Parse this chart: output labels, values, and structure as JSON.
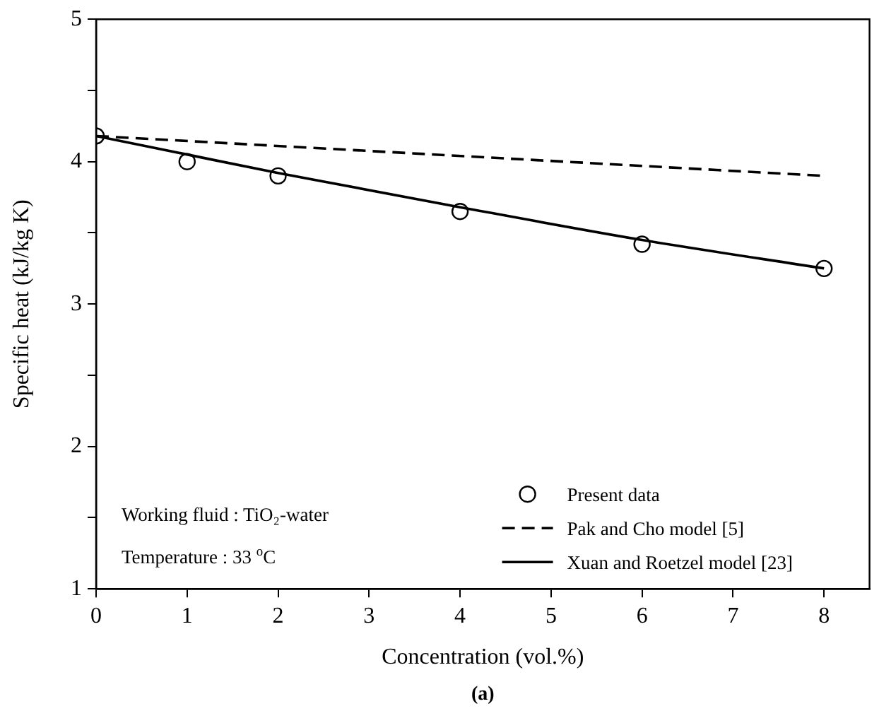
{
  "chart_data": {
    "type": "line",
    "xlabel": "Concentration (vol.%)",
    "ylabel": "Specific heat (kJ/kg K)",
    "xlim": [
      0,
      8.5
    ],
    "xticks": [
      0,
      1,
      2,
      3,
      4,
      5,
      6,
      7,
      8
    ],
    "ylim": [
      1,
      5
    ],
    "yticks": [
      1,
      {
        "value": 1.5,
        "label": null
      },
      2,
      {
        "value": 2.5,
        "label": null
      },
      3,
      {
        "value": 3.5,
        "label": null
      },
      4,
      {
        "value": 4.5,
        "label": null
      },
      5
    ],
    "grid": false,
    "legend": "bottom right",
    "series": [
      {
        "name": "Present data",
        "type": "scatter",
        "color": "#000000",
        "marker": "circle",
        "x": [
          0,
          1,
          2,
          4,
          6,
          8
        ],
        "values": [
          4.18,
          4.0,
          3.9,
          3.65,
          3.42,
          3.25
        ]
      },
      {
        "name": "Pak and Cho model [5]",
        "type": "line",
        "color": "#000000",
        "marker": "none",
        "line_style": "dashed",
        "x": [
          0,
          8
        ],
        "values": [
          4.18,
          3.9
        ]
      },
      {
        "name": "Xuan and Roetzel model [23]",
        "type": "line",
        "color": "#000000",
        "marker": "none",
        "line_style": "solid",
        "x": [
          0,
          1,
          2,
          4,
          6,
          8
        ],
        "values": [
          4.18,
          4.05,
          3.92,
          3.68,
          3.45,
          3.25
        ]
      }
    ],
    "annotations": [
      "Working fluid : TiO₂-water",
      "Temperature : 33 $^{o}$C",
      "(a)"
    ]
  }
}
